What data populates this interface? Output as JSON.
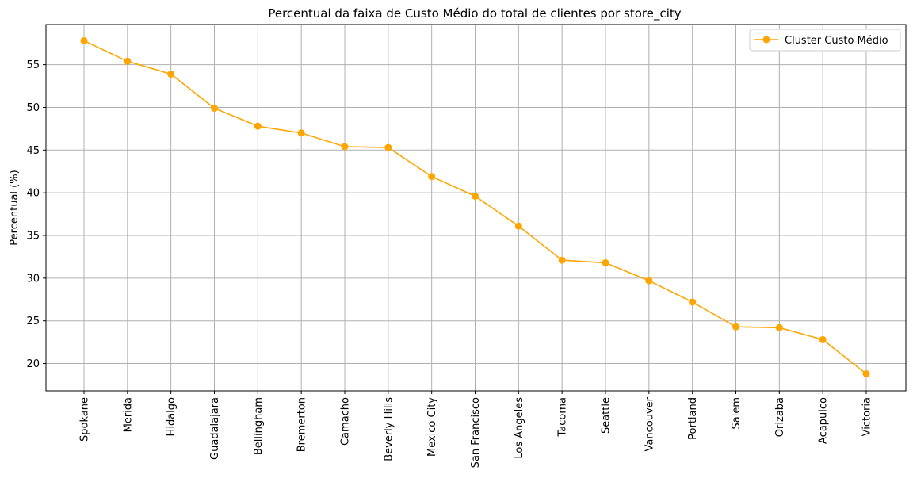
{
  "chart_data": {
    "type": "line",
    "title": "Percentual da faixa de Custo Médio do total de clientes por store_city",
    "xlabel": "",
    "ylabel": "Percentual (%)",
    "categories": [
      "Spokane",
      "Merida",
      "Hidalgo",
      "Guadalajara",
      "Bellingham",
      "Bremerton",
      "Camacho",
      "Beverly Hills",
      "Mexico City",
      "San Francisco",
      "Los Angeles",
      "Tacoma",
      "Seattle",
      "Vancouver",
      "Portland",
      "Salem",
      "Orizaba",
      "Acapulco",
      "Victoria"
    ],
    "series": [
      {
        "name": "Cluster Custo Médio",
        "color": "#ffa500",
        "marker": "circle",
        "values": [
          57.8,
          55.4,
          53.9,
          49.9,
          47.8,
          47.0,
          45.4,
          45.3,
          41.9,
          39.6,
          36.1,
          32.1,
          31.8,
          29.7,
          27.2,
          24.3,
          24.2,
          22.8,
          18.8
        ]
      }
    ],
    "ylim": [
      16.8,
      59.7
    ],
    "yticks": [
      20,
      25,
      30,
      35,
      40,
      45,
      50,
      55
    ],
    "grid": true,
    "legend_position": "top-right",
    "colors": {
      "line": "#ffa500",
      "grid": "#b0b0b0",
      "axes": "#000000"
    }
  }
}
